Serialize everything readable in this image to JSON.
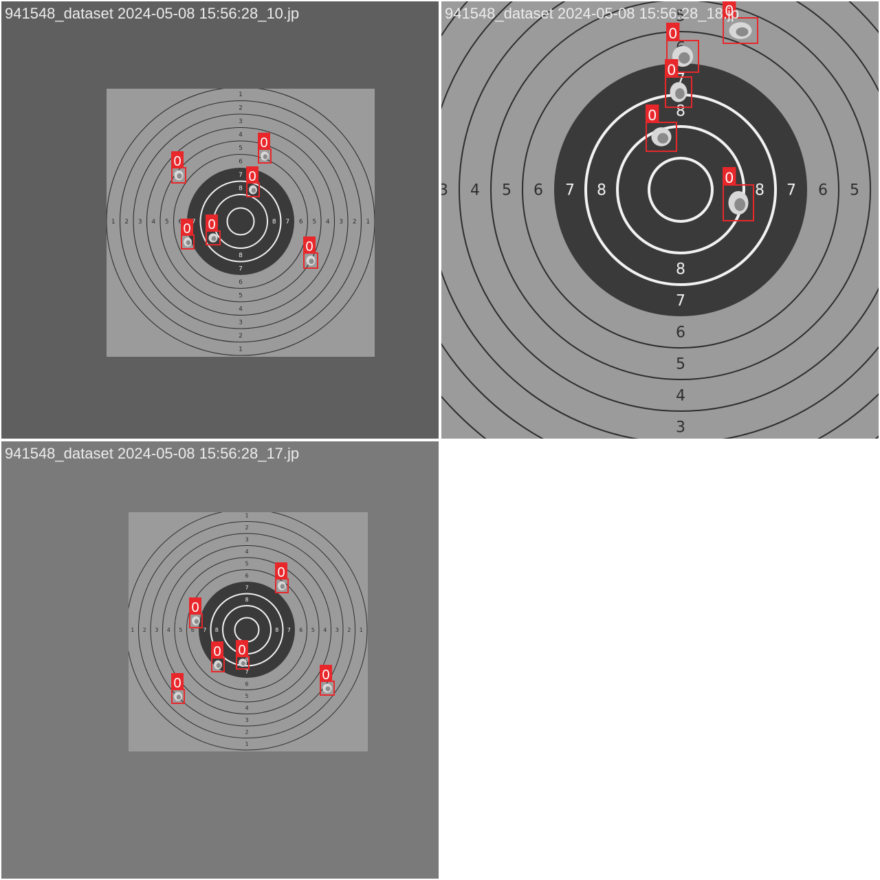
{
  "colors": {
    "detection_box": "#e8272b",
    "detection_label_bg": "#e8272b",
    "caption_text": "#ececec"
  },
  "tiles": [
    {
      "caption": "941548_dataset 2024-05-08 15:56:28_10.jp",
      "detections": [
        {
          "label": "0"
        },
        {
          "label": "0"
        },
        {
          "label": "0"
        },
        {
          "label": "0"
        },
        {
          "label": "0"
        },
        {
          "label": "0"
        }
      ]
    },
    {
      "caption": "941548_dataset 2024-05-08 15:56:28_18.jp",
      "detections": [
        {
          "label": "0"
        },
        {
          "label": "0"
        },
        {
          "label": "0"
        },
        {
          "label": "0"
        },
        {
          "label": "0"
        }
      ]
    },
    {
      "caption": "941548_dataset 2024-05-08 15:56:28_17.jp",
      "detections": [
        {
          "label": "0"
        },
        {
          "label": "0"
        },
        {
          "label": "0"
        },
        {
          "label": "0"
        },
        {
          "label": "0"
        },
        {
          "label": "0"
        }
      ]
    }
  ]
}
